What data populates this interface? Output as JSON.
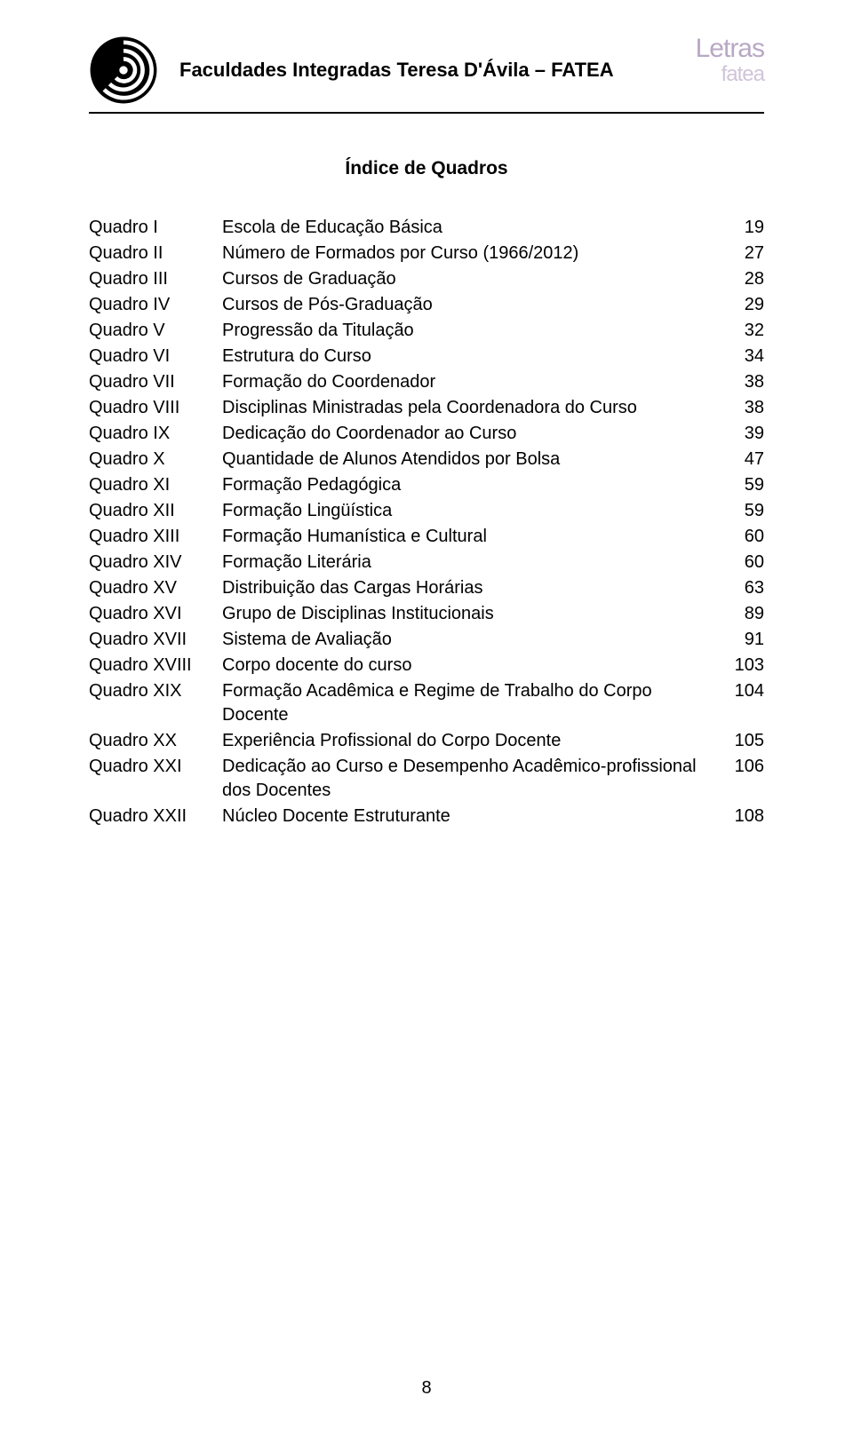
{
  "header": {
    "institution": "Faculdades Integradas Teresa D'Ávila – FATEA",
    "brand_top": "Letras",
    "brand_bottom": "fatea"
  },
  "index": {
    "title": "Índice de Quadros",
    "rows": [
      {
        "id": "Quadro I",
        "desc": "Escola de Educação Básica",
        "page": "19"
      },
      {
        "id": "Quadro II",
        "desc": "Número de Formados por Curso (1966/2012)",
        "page": "27"
      },
      {
        "id": "Quadro III",
        "desc": "Cursos de Graduação",
        "page": "28"
      },
      {
        "id": "Quadro IV",
        "desc": "Cursos de Pós-Graduação",
        "page": "29"
      },
      {
        "id": "Quadro V",
        "desc": "Progressão da Titulação",
        "page": "32"
      },
      {
        "id": "Quadro VI",
        "desc": "Estrutura do Curso",
        "page": "34"
      },
      {
        "id": "Quadro VII",
        "desc": "Formação do Coordenador",
        "page": "38"
      },
      {
        "id": "Quadro VIII",
        "desc": "Disciplinas Ministradas pela Coordenadora do Curso",
        "page": "38"
      },
      {
        "id": "Quadro IX",
        "desc": "Dedicação do Coordenador ao Curso",
        "page": "39"
      },
      {
        "id": "Quadro X",
        "desc": "Quantidade de Alunos Atendidos por Bolsa",
        "page": "47"
      },
      {
        "id": "Quadro XI",
        "desc": "Formação Pedagógica",
        "page": "59"
      },
      {
        "id": "Quadro XII",
        "desc": "Formação Lingüística",
        "page": "59"
      },
      {
        "id": "Quadro XIII",
        "desc": "Formação Humanística e Cultural",
        "page": "60"
      },
      {
        "id": "Quadro XIV",
        "desc": "Formação Literária",
        "page": "60"
      },
      {
        "id": "Quadro XV",
        "desc": "Distribuição das Cargas Horárias",
        "page": "63"
      },
      {
        "id": "Quadro XVI",
        "desc": "Grupo de Disciplinas Institucionais",
        "page": "89"
      },
      {
        "id": "Quadro XVII",
        "desc": "Sistema de Avaliação",
        "page": "91"
      },
      {
        "id": "Quadro XVIII",
        "desc": "Corpo docente do curso",
        "page": "103"
      },
      {
        "id": "Quadro XIX",
        "desc": "Formação Acadêmica e Regime de Trabalho do Corpo Docente",
        "page": "104"
      },
      {
        "id": "Quadro XX",
        "desc": "Experiência Profissional do Corpo Docente",
        "page": "105"
      },
      {
        "id": "Quadro XXI",
        "desc": "Dedicação ao Curso e Desempenho Acadêmico-profissional dos Docentes",
        "page": "106"
      },
      {
        "id": "Quadro XXII",
        "desc": "Núcleo Docente Estruturante",
        "page": "108"
      }
    ]
  },
  "footer": {
    "page_number": "8"
  },
  "style": {
    "text_color": "#000000",
    "background_color": "#ffffff",
    "brand_color_top": "#b8a8c4",
    "brand_color_bottom": "#d0c4d8",
    "body_fontsize": 20,
    "title_fontsize": 21,
    "header_fontsize": 22
  }
}
